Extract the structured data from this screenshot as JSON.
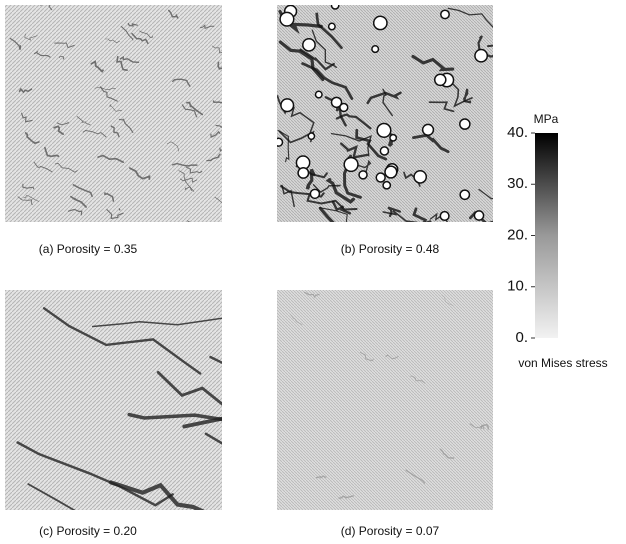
{
  "panels": [
    {
      "caption": "(a) Porosity = 0.35"
    },
    {
      "caption": "(b) Porosity = 0.48"
    },
    {
      "caption": "(c) Porosity = 0.20"
    },
    {
      "caption": "(d) Porosity = 0.07"
    }
  ],
  "colorbar": {
    "unit": "MPa",
    "label": "von Mises stress",
    "range": [
      0,
      40
    ],
    "ticks": [
      {
        "value": 0,
        "label": "0."
      },
      {
        "value": 10,
        "label": "10."
      },
      {
        "value": 20,
        "label": "20."
      },
      {
        "value": 30,
        "label": "30."
      },
      {
        "value": 40,
        "label": "40."
      }
    ]
  }
}
